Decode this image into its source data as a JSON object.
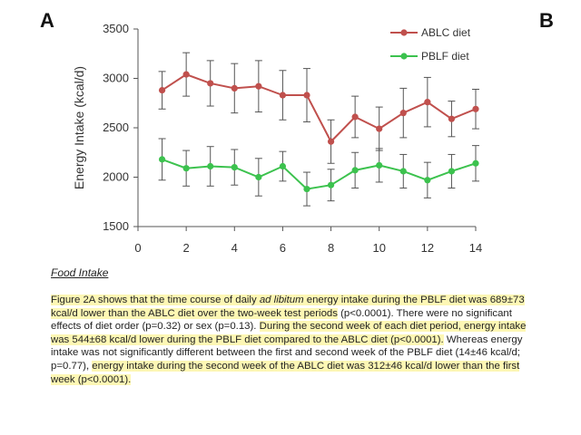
{
  "panel_labels": {
    "a": "A",
    "b": "B"
  },
  "chart_data": {
    "type": "line",
    "x": [
      1,
      2,
      3,
      4,
      5,
      6,
      7,
      8,
      9,
      10,
      11,
      12,
      13,
      14
    ],
    "xticks": [
      0,
      2,
      4,
      6,
      8,
      10,
      12,
      14
    ],
    "yticks": [
      1500,
      2000,
      2500,
      3000,
      3500
    ],
    "xlim": [
      0,
      14
    ],
    "ylim": [
      1500,
      3500
    ],
    "xlabel": "",
    "ylabel": "Energy Intake (kcal/d)",
    "legend_position": "top-right",
    "series": [
      {
        "name": "ABLC diet",
        "color": "#c0504d",
        "values": [
          2880,
          3040,
          2950,
          2900,
          2920,
          2830,
          2830,
          2360,
          2610,
          2490,
          2650,
          2760,
          2590,
          2690
        ],
        "errors": [
          190,
          220,
          230,
          250,
          260,
          250,
          270,
          220,
          210,
          220,
          250,
          250,
          180,
          200
        ]
      },
      {
        "name": "PBLF diet",
        "color": "#3cc24e",
        "values": [
          2180,
          2090,
          2110,
          2100,
          2000,
          2110,
          1880,
          1920,
          2070,
          2120,
          2060,
          1970,
          2060,
          2140
        ],
        "errors": [
          210,
          180,
          200,
          180,
          190,
          150,
          170,
          160,
          180,
          170,
          170,
          180,
          170,
          180
        ]
      }
    ]
  },
  "section_heading": "Food Intake",
  "paragraph": [
    {
      "text": "Figure 2A shows that the time course of daily ",
      "hl": true
    },
    {
      "text": "ad libitum",
      "hl": true,
      "italic": true
    },
    {
      "text": " energy intake during the PBLF diet was 689±73 kcal/d lower than the ABLC diet over the two-week test periods",
      "hl": true
    },
    {
      "text": " (p<0.0001). There were no significant effects of diet order (p=0.32) or sex (p=0.13). ",
      "hl": false
    },
    {
      "text": "During the second week of each diet period, energy intake was 544±68 kcal/d lower during the PBLF diet compared to the ABLC diet (p<0.0001).",
      "hl": true
    },
    {
      "text": " Whereas energy intake was not significantly different between the first and second week of the PBLF diet (14±46 kcal/d; p=0.77), ",
      "hl": false
    },
    {
      "text": "energy intake during the second week of the ABLC diet was 312±46 kcal/d lower than the first week (p<0.0001).",
      "hl": true
    }
  ]
}
